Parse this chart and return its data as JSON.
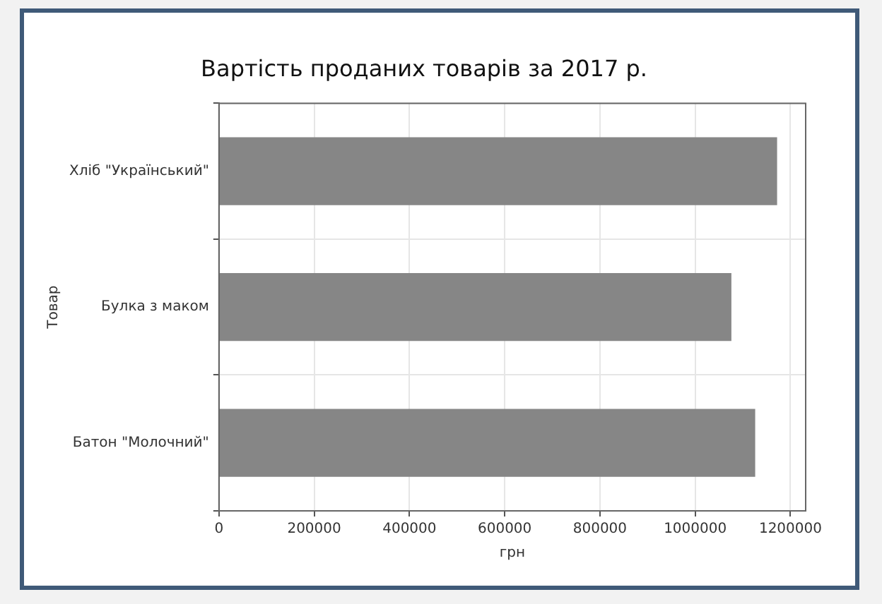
{
  "chart_data": {
    "type": "bar",
    "orientation": "horizontal",
    "title": "Вартість проданих товарів за 2017 р.",
    "xlabel": "грн",
    "ylabel": "Товар",
    "categories": [
      "Хліб \"Український\"",
      "Булка з маком",
      "Батон \"Молочний\""
    ],
    "values": [
      1172000,
      1076000,
      1126000
    ],
    "color": "#868686",
    "xlim": [
      0,
      1232000
    ],
    "xticks": [
      0,
      200000,
      400000,
      600000,
      800000,
      1000000,
      1200000
    ],
    "grid": true
  }
}
